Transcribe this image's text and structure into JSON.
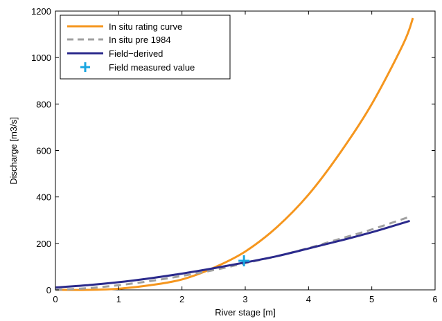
{
  "chart_data": {
    "type": "line",
    "title": "",
    "xlabel": "River stage [m]",
    "ylabel": "Discharge [m3/s]",
    "xlim": [
      0,
      6
    ],
    "ylim": [
      0,
      1200
    ],
    "xticks": [
      "0",
      "1",
      "2",
      "3",
      "4",
      "5",
      "6"
    ],
    "yticks": [
      "0",
      "200",
      "400",
      "600",
      "800",
      "1000",
      "1200"
    ],
    "grid": false,
    "legend_position": "top-left",
    "series": [
      {
        "name": "In situ rating curve",
        "color": "#f5961e",
        "style": "solid",
        "x": [
          0,
          0.5,
          1.0,
          1.5,
          2.0,
          2.5,
          3.0,
          3.5,
          4.0,
          4.5,
          5.0,
          5.5,
          5.65
        ],
        "y": [
          0,
          0,
          5,
          20,
          45,
          95,
          165,
          270,
          410,
          590,
          800,
          1060,
          1170
        ]
      },
      {
        "name": "In situ pre 1984",
        "color": "#a0a0a0",
        "style": "dashed",
        "x": [
          0,
          0.5,
          1.0,
          1.5,
          2.0,
          2.5,
          3.0,
          3.5,
          4.0,
          4.5,
          5.0,
          5.6
        ],
        "y": [
          0,
          7,
          20,
          38,
          60,
          85,
          115,
          145,
          180,
          220,
          260,
          315
        ]
      },
      {
        "name": "Field−derived",
        "color": "#2b2a8c",
        "style": "solid",
        "x": [
          0,
          0.5,
          1.0,
          1.5,
          2.0,
          2.5,
          3.0,
          3.5,
          4.0,
          4.5,
          5.0,
          5.6
        ],
        "y": [
          10,
          20,
          33,
          50,
          70,
          93,
          118,
          145,
          178,
          212,
          248,
          297
        ]
      },
      {
        "name": "Field measured value",
        "color": "#1aa6e0",
        "style": "marker",
        "x": [
          2.98
        ],
        "y": [
          125
        ]
      }
    ]
  }
}
